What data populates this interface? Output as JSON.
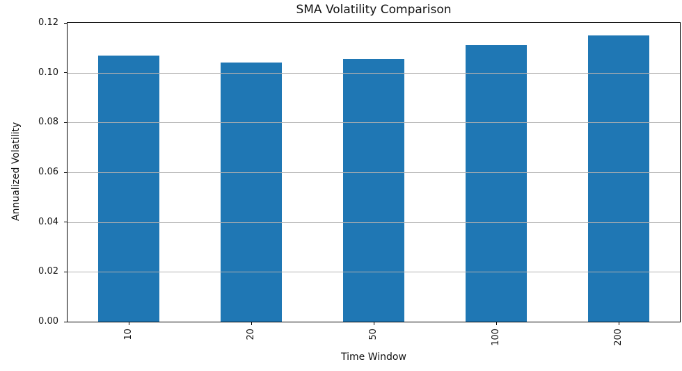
{
  "chart_data": {
    "type": "bar",
    "title": "SMA Volatility Comparison",
    "xlabel": "Time Window",
    "ylabel": "Annualized Volatility",
    "categories": [
      "10",
      "20",
      "50",
      "100",
      "200"
    ],
    "values": [
      0.107,
      0.104,
      0.1055,
      0.111,
      0.115
    ],
    "ylim": [
      0,
      0.12
    ],
    "ytick_values": [
      0,
      0.02,
      0.04,
      0.06,
      0.08,
      0.1,
      0.12
    ],
    "ytick_labels": [
      "0.00",
      "0.02",
      "0.04",
      "0.06",
      "0.08",
      "0.10",
      "0.12"
    ],
    "bar_color": "#1f77b4",
    "grid_color": "#b0b0b0",
    "grid": "horizontal-only, drawn above bars",
    "xtick_rotation_deg": 90,
    "bar_width_fraction": 0.5,
    "legend": "none"
  }
}
